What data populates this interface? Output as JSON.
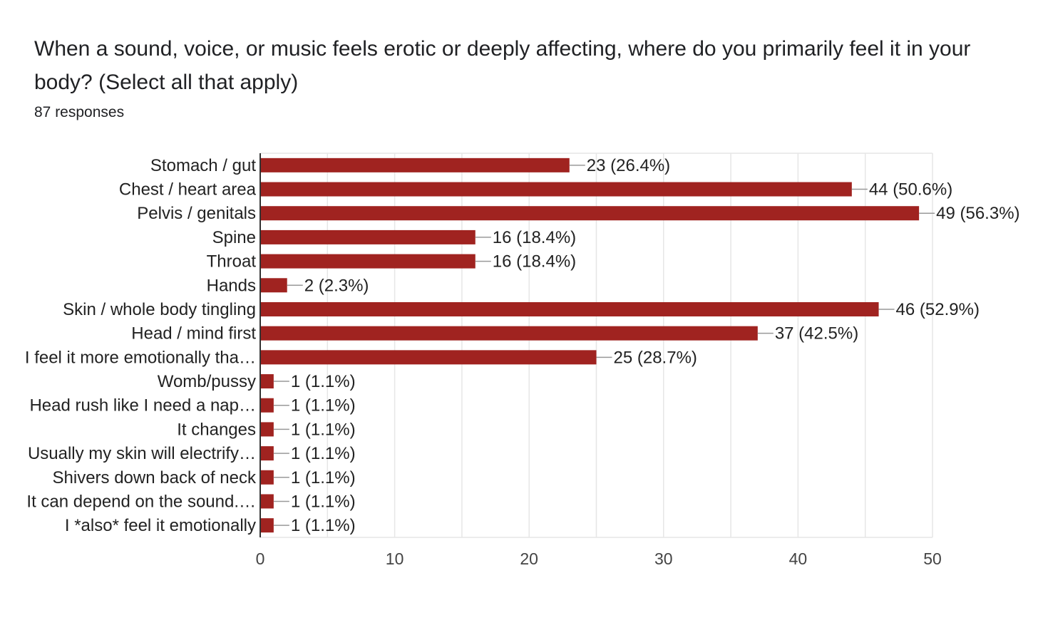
{
  "title": "When a sound, voice, or music feels erotic or deeply affecting, where do you primarily feel it in your body? (Select all that apply)",
  "response_count": "87 responses",
  "colors": {
    "bar": "#a02320",
    "grid": "#e6e6e6",
    "axis": "#333333"
  },
  "chart_data": {
    "type": "bar",
    "orientation": "horizontal",
    "categories": [
      "Stomach / gut",
      "Chest / heart area",
      "Pelvis / genitals",
      "Spine",
      "Throat",
      "Hands",
      "Skin / whole body tingling",
      "Head / mind first",
      "I feel it more emotionally tha…",
      "Womb/pussy",
      "Head rush like I need a nap…",
      "It changes",
      "Usually my skin will electrify…",
      "Shivers down back of neck",
      "It can depend on the sound.…",
      "I *also* feel it emotionally"
    ],
    "values": [
      23,
      44,
      49,
      16,
      16,
      2,
      46,
      37,
      25,
      1,
      1,
      1,
      1,
      1,
      1,
      1
    ],
    "data_labels": [
      "23 (26.4%)",
      "44 (50.6%)",
      "49 (56.3%)",
      "16 (18.4%)",
      "16 (18.4%)",
      "2 (2.3%)",
      "46 (52.9%)",
      "37 (42.5%)",
      "25 (28.7%)",
      "1 (1.1%)",
      "1 (1.1%)",
      "1 (1.1%)",
      "1 (1.1%)",
      "1 (1.1%)",
      "1 (1.1%)",
      "1 (1.1%)"
    ],
    "xlim": [
      0,
      50
    ],
    "xticks": [
      0,
      10,
      20,
      30,
      40,
      50
    ],
    "grid": true
  }
}
